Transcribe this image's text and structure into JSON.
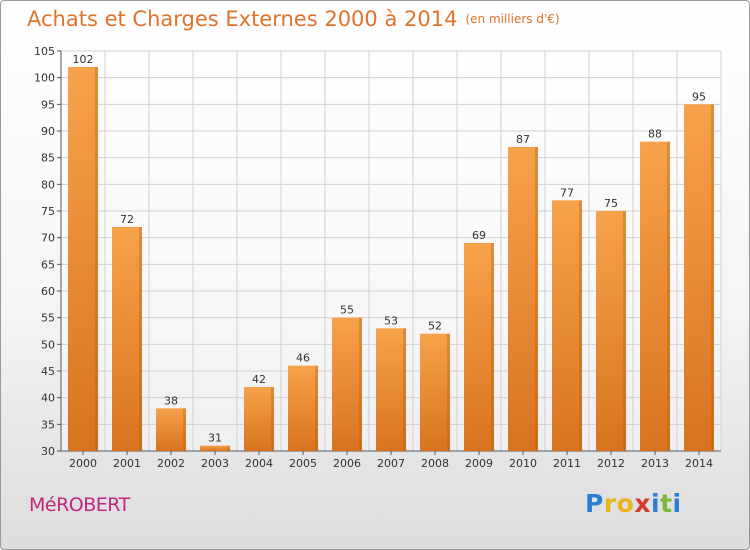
{
  "title": "Achats et Charges Externes 2000 à 2014",
  "unit": "(en milliers d'€)",
  "commune": "MéROBERT",
  "logo": {
    "text": "Proxiti",
    "letters": [
      {
        "char": "P",
        "color": "#2a7fd4"
      },
      {
        "char": "r",
        "color": "#e8b420"
      },
      {
        "char": "o",
        "color": "#e8b420"
      },
      {
        "char": "x",
        "color": "#d63a2c"
      },
      {
        "char": "i",
        "color": "#2a7fd4"
      },
      {
        "char": "t",
        "color": "#7ab83a"
      },
      {
        "char": "i",
        "color": "#2a7fd4"
      }
    ]
  },
  "colors": {
    "bar_light": "#f7a24a",
    "bar_dark": "#d8731f",
    "title": "#e0742a",
    "commune": "#c2277f",
    "grid": "#d0d0d0"
  },
  "chart_data": {
    "type": "bar",
    "categories": [
      "2000",
      "2001",
      "2002",
      "2003",
      "2004",
      "2005",
      "2006",
      "2007",
      "2008",
      "2009",
      "2010",
      "2011",
      "2012",
      "2013",
      "2014"
    ],
    "values": [
      102,
      72,
      38,
      31,
      42,
      46,
      55,
      53,
      52,
      69,
      87,
      77,
      75,
      88,
      95
    ],
    "ylim": [
      30,
      105
    ],
    "yticks": [
      30,
      35,
      40,
      45,
      50,
      55,
      60,
      65,
      70,
      75,
      80,
      85,
      90,
      95,
      100,
      105
    ],
    "grid": true,
    "legend": "none"
  }
}
